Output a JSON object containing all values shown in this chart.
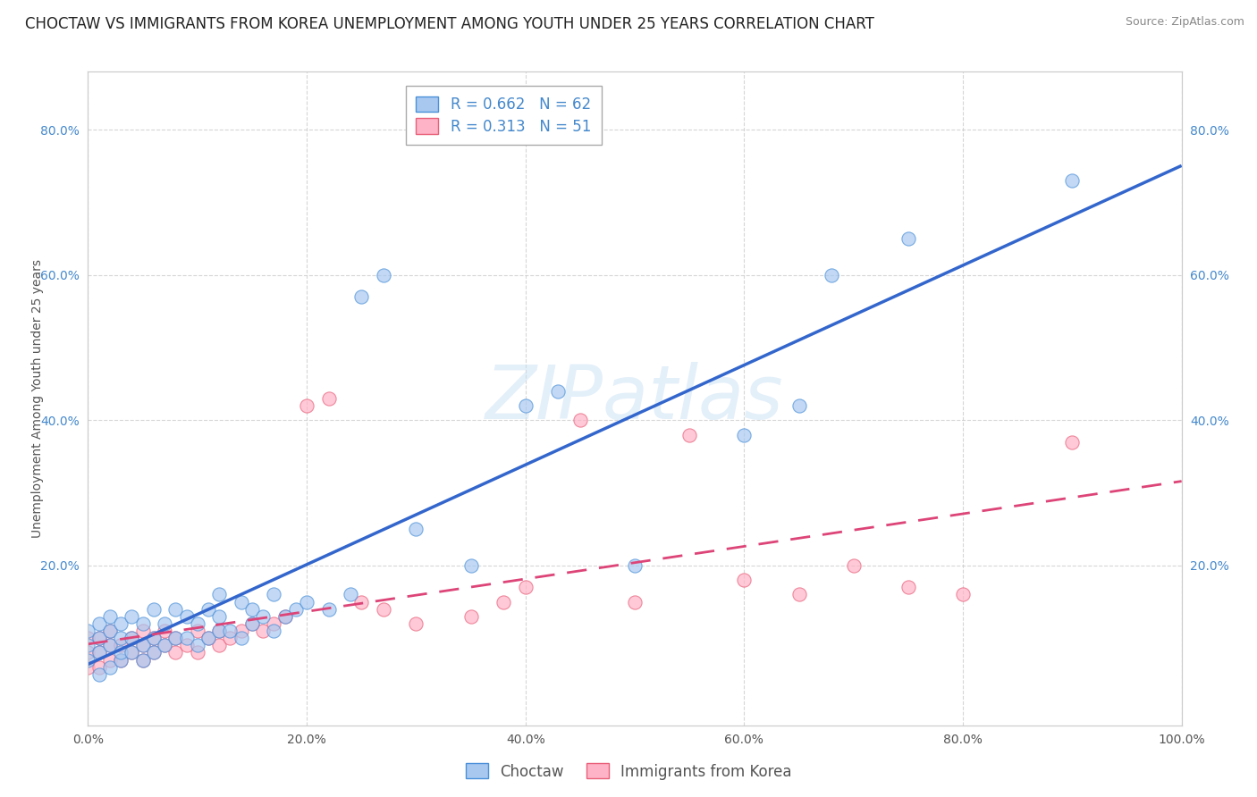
{
  "title": "CHOCTAW VS IMMIGRANTS FROM KOREA UNEMPLOYMENT AMONG YOUTH UNDER 25 YEARS CORRELATION CHART",
  "source": "Source: ZipAtlas.com",
  "ylabel": "Unemployment Among Youth under 25 years",
  "xlim": [
    0.0,
    1.0
  ],
  "ylim": [
    -0.02,
    0.88
  ],
  "xtick_labels": [
    "0.0%",
    "20.0%",
    "40.0%",
    "60.0%",
    "80.0%",
    "100.0%"
  ],
  "xtick_vals": [
    0.0,
    0.2,
    0.4,
    0.6,
    0.8,
    1.0
  ],
  "ytick_labels": [
    "20.0%",
    "40.0%",
    "60.0%",
    "80.0%"
  ],
  "ytick_vals": [
    0.2,
    0.4,
    0.6,
    0.8
  ],
  "choctaw_color": "#A8C8F0",
  "choctaw_edge_color": "#4A90D9",
  "korea_color": "#FFB3C6",
  "korea_edge_color": "#E8607A",
  "choctaw_line_color": "#3366CC",
  "korea_line_color": "#DD4477",
  "legend_R_choctaw": "R = 0.662",
  "legend_N_choctaw": "N = 62",
  "legend_R_korea": "R = 0.313",
  "legend_N_korea": "N = 51",
  "choctaw_scatter_x": [
    0.0,
    0.0,
    0.0,
    0.01,
    0.01,
    0.01,
    0.01,
    0.02,
    0.02,
    0.02,
    0.02,
    0.03,
    0.03,
    0.03,
    0.03,
    0.04,
    0.04,
    0.04,
    0.05,
    0.05,
    0.05,
    0.06,
    0.06,
    0.06,
    0.07,
    0.07,
    0.08,
    0.08,
    0.09,
    0.09,
    0.1,
    0.1,
    0.11,
    0.11,
    0.12,
    0.12,
    0.12,
    0.13,
    0.14,
    0.14,
    0.15,
    0.15,
    0.16,
    0.17,
    0.17,
    0.18,
    0.19,
    0.2,
    0.22,
    0.24,
    0.25,
    0.27,
    0.3,
    0.35,
    0.4,
    0.43,
    0.5,
    0.6,
    0.65,
    0.68,
    0.75,
    0.9
  ],
  "choctaw_scatter_y": [
    0.07,
    0.09,
    0.11,
    0.05,
    0.08,
    0.1,
    0.12,
    0.06,
    0.09,
    0.11,
    0.13,
    0.07,
    0.08,
    0.1,
    0.12,
    0.08,
    0.1,
    0.13,
    0.07,
    0.09,
    0.12,
    0.08,
    0.1,
    0.14,
    0.09,
    0.12,
    0.1,
    0.14,
    0.1,
    0.13,
    0.09,
    0.12,
    0.1,
    0.14,
    0.11,
    0.13,
    0.16,
    0.11,
    0.1,
    0.15,
    0.12,
    0.14,
    0.13,
    0.11,
    0.16,
    0.13,
    0.14,
    0.15,
    0.14,
    0.16,
    0.57,
    0.6,
    0.25,
    0.2,
    0.42,
    0.44,
    0.2,
    0.38,
    0.42,
    0.6,
    0.65,
    0.73
  ],
  "korea_scatter_x": [
    0.0,
    0.0,
    0.0,
    0.01,
    0.01,
    0.01,
    0.02,
    0.02,
    0.02,
    0.03,
    0.03,
    0.04,
    0.04,
    0.05,
    0.05,
    0.05,
    0.06,
    0.06,
    0.07,
    0.07,
    0.08,
    0.08,
    0.09,
    0.1,
    0.1,
    0.11,
    0.12,
    0.12,
    0.13,
    0.14,
    0.15,
    0.16,
    0.17,
    0.18,
    0.2,
    0.22,
    0.25,
    0.27,
    0.3,
    0.35,
    0.38,
    0.4,
    0.45,
    0.5,
    0.55,
    0.6,
    0.65,
    0.7,
    0.75,
    0.8,
    0.9
  ],
  "korea_scatter_y": [
    0.06,
    0.08,
    0.1,
    0.06,
    0.08,
    0.1,
    0.07,
    0.09,
    0.11,
    0.07,
    0.09,
    0.08,
    0.1,
    0.07,
    0.09,
    0.11,
    0.08,
    0.1,
    0.09,
    0.11,
    0.08,
    0.1,
    0.09,
    0.08,
    0.11,
    0.1,
    0.09,
    0.11,
    0.1,
    0.11,
    0.12,
    0.11,
    0.12,
    0.13,
    0.42,
    0.43,
    0.15,
    0.14,
    0.12,
    0.13,
    0.15,
    0.17,
    0.4,
    0.15,
    0.38,
    0.18,
    0.16,
    0.2,
    0.17,
    0.16,
    0.37
  ],
  "watermark": "ZIPatlas",
  "background_color": "#FFFFFF",
  "grid_color": "#CCCCCC",
  "title_fontsize": 12,
  "axis_fontsize": 10,
  "tick_fontsize": 10,
  "legend_fontsize": 12
}
